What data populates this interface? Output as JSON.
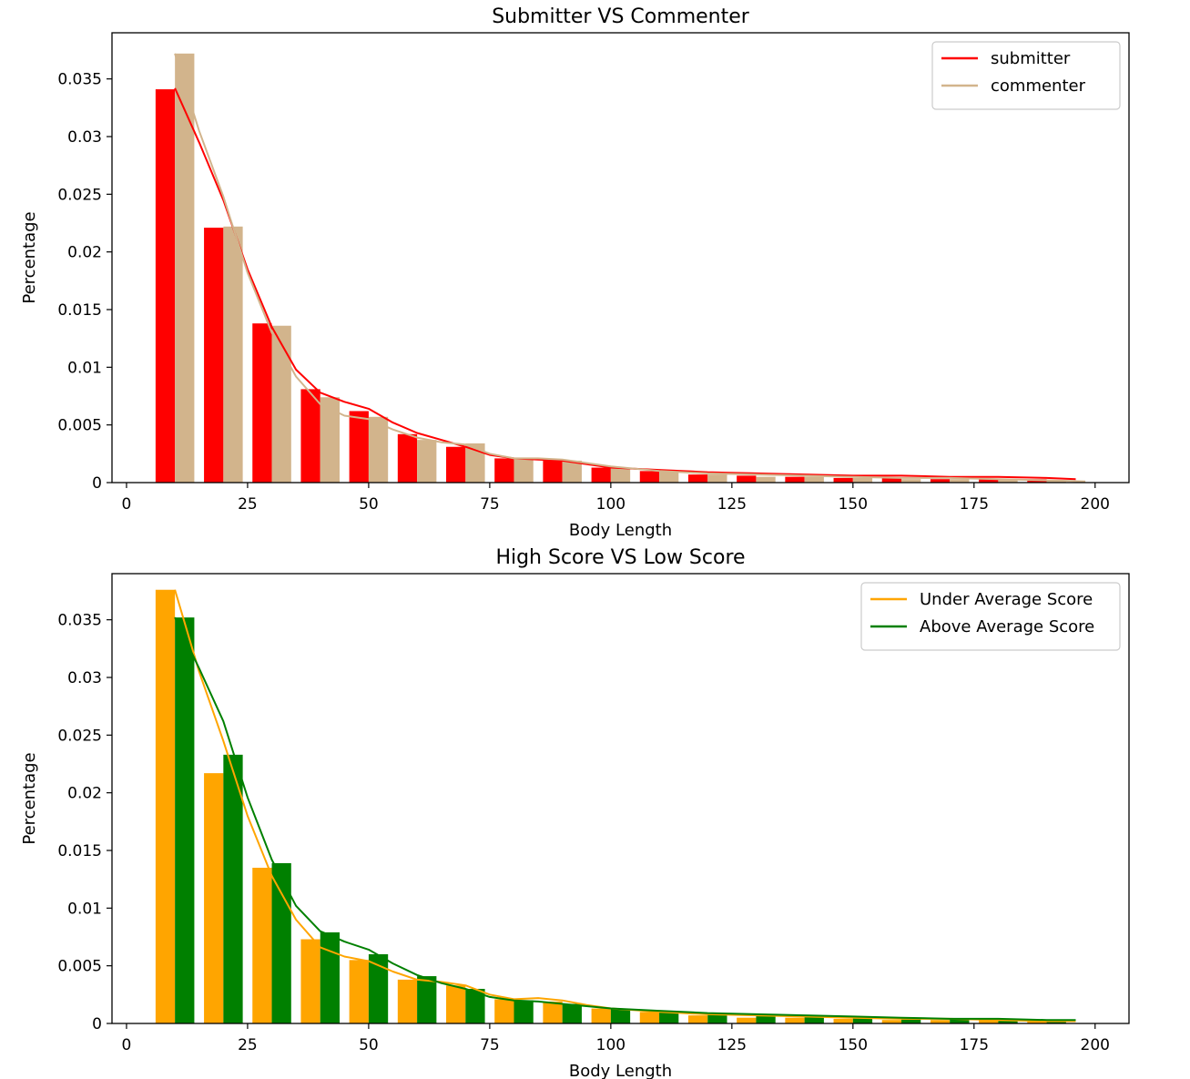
{
  "chart_data": [
    {
      "type": "bar",
      "title": "Submitter VS Commenter",
      "xlabel": "Body Length",
      "ylabel": "Percentage",
      "xlim": [
        -3,
        207
      ],
      "ylim": [
        0,
        0.039
      ],
      "legend_position": "top-right",
      "xticks": [
        0,
        25,
        50,
        75,
        100,
        125,
        150,
        175,
        200
      ],
      "xtick_labels": [
        "0",
        "25",
        "50",
        "75",
        "100",
        "125",
        "150",
        "175",
        "200"
      ],
      "yticks": [
        0,
        0.005,
        0.01,
        0.015,
        0.02,
        0.025,
        0.03,
        0.035
      ],
      "ytick_labels": [
        "0",
        "0.005",
        "0.01",
        "0.015",
        "0.02",
        "0.025",
        "0.03",
        "0.035"
      ],
      "bin_edges": [
        6,
        16,
        26,
        36,
        46,
        56,
        66,
        76,
        86,
        96,
        106,
        116,
        126,
        136,
        146,
        156,
        166,
        176,
        186,
        196
      ],
      "series": [
        {
          "name": "submitter",
          "color": "#ff0000",
          "values": [
            0.0341,
            0.0221,
            0.0138,
            0.0081,
            0.0062,
            0.0042,
            0.0031,
            0.0021,
            0.0019,
            0.0013,
            0.001,
            0.0007,
            0.0006,
            0.0005,
            0.0004,
            0.0004,
            0.0003,
            0.0003,
            0.0003
          ],
          "kde_x": [
            10,
            15,
            20,
            25,
            30,
            35,
            40,
            45,
            50,
            55,
            60,
            65,
            70,
            75,
            80,
            85,
            90,
            95,
            100,
            110,
            120,
            130,
            140,
            150,
            160,
            170,
            180,
            190,
            196
          ],
          "kde_y": [
            0.0342,
            0.0295,
            0.0245,
            0.0185,
            0.0135,
            0.0098,
            0.0078,
            0.007,
            0.0064,
            0.0052,
            0.0043,
            0.0037,
            0.0031,
            0.0024,
            0.0021,
            0.002,
            0.0019,
            0.0016,
            0.0013,
            0.0011,
            0.0009,
            0.0008,
            0.0007,
            0.0006,
            0.0006,
            0.0005,
            0.0005,
            0.0004,
            0.0003
          ]
        },
        {
          "name": "commenter",
          "color": "#d2b48c",
          "values": [
            0.0372,
            0.0222,
            0.0136,
            0.0074,
            0.0057,
            0.0037,
            0.0034,
            0.0021,
            0.0019,
            0.0013,
            0.001,
            0.0007,
            0.0005,
            0.0005,
            0.0004,
            0.0003,
            0.0003,
            0.0003,
            0.0002
          ],
          "kde_x": [
            10,
            15,
            20,
            25,
            30,
            35,
            40,
            45,
            50,
            55,
            60,
            65,
            70,
            75,
            80,
            85,
            90,
            95,
            100,
            110,
            120,
            130,
            140,
            150,
            160,
            170,
            180,
            190,
            198
          ],
          "kde_y": [
            0.0372,
            0.0305,
            0.0248,
            0.0182,
            0.013,
            0.0092,
            0.0068,
            0.0058,
            0.0055,
            0.0046,
            0.0039,
            0.0035,
            0.0033,
            0.0025,
            0.0021,
            0.0021,
            0.002,
            0.0017,
            0.0014,
            0.001,
            0.0008,
            0.0007,
            0.0006,
            0.0005,
            0.0004,
            0.0004,
            0.0003,
            0.0002,
            0.0001
          ]
        }
      ]
    },
    {
      "type": "bar",
      "title": "High Score VS Low Score",
      "xlabel": "Body Length",
      "ylabel": "Percentage",
      "xlim": [
        -3,
        207
      ],
      "ylim": [
        0,
        0.039
      ],
      "legend_position": "top-right",
      "xticks": [
        0,
        25,
        50,
        75,
        100,
        125,
        150,
        175,
        200
      ],
      "xtick_labels": [
        "0",
        "25",
        "50",
        "75",
        "100",
        "125",
        "150",
        "175",
        "200"
      ],
      "yticks": [
        0,
        0.005,
        0.01,
        0.015,
        0.02,
        0.025,
        0.03,
        0.035
      ],
      "ytick_labels": [
        "0",
        "0.005",
        "0.01",
        "0.015",
        "0.02",
        "0.025",
        "0.03",
        "0.035"
      ],
      "bin_edges": [
        6,
        16,
        26,
        36,
        46,
        56,
        66,
        76,
        86,
        96,
        106,
        116,
        126,
        136,
        146,
        156,
        166,
        176,
        186,
        196
      ],
      "series": [
        {
          "name": "Under Average Score",
          "color": "#ffa500",
          "values": [
            0.0376,
            0.0217,
            0.0135,
            0.0073,
            0.0055,
            0.0038,
            0.0033,
            0.0021,
            0.0019,
            0.0013,
            0.001,
            0.0007,
            0.0005,
            0.0005,
            0.0004,
            0.0003,
            0.0003,
            0.0003,
            0.0002
          ],
          "kde_x": [
            10,
            15,
            20,
            25,
            30,
            35,
            40,
            45,
            50,
            55,
            60,
            65,
            70,
            75,
            80,
            85,
            90,
            95,
            100,
            110,
            120,
            130,
            140,
            150,
            160,
            170,
            180,
            190,
            196
          ],
          "kde_y": [
            0.0376,
            0.0305,
            0.0245,
            0.018,
            0.0128,
            0.009,
            0.0066,
            0.0058,
            0.0054,
            0.0045,
            0.0038,
            0.0036,
            0.0033,
            0.0025,
            0.0021,
            0.0022,
            0.002,
            0.0016,
            0.0013,
            0.001,
            0.0008,
            0.0007,
            0.0006,
            0.0005,
            0.0004,
            0.0004,
            0.0003,
            0.0002,
            0.0002
          ]
        },
        {
          "name": "Above Average Score",
          "color": "#008000",
          "values": [
            0.0352,
            0.0233,
            0.0139,
            0.0079,
            0.006,
            0.0041,
            0.003,
            0.002,
            0.0017,
            0.0013,
            0.0011,
            0.0008,
            0.0007,
            0.0006,
            0.0005,
            0.0004,
            0.0004,
            0.0003,
            0.0003
          ],
          "kde_x": [
            10,
            15,
            20,
            25,
            30,
            35,
            40,
            45,
            50,
            55,
            60,
            65,
            70,
            75,
            80,
            85,
            90,
            95,
            100,
            110,
            120,
            130,
            140,
            150,
            160,
            170,
            180,
            190,
            196
          ],
          "kde_y": [
            0.0352,
            0.0308,
            0.0262,
            0.0196,
            0.0142,
            0.0102,
            0.008,
            0.0071,
            0.0064,
            0.0052,
            0.0042,
            0.0035,
            0.003,
            0.0023,
            0.002,
            0.0019,
            0.0017,
            0.0015,
            0.0013,
            0.0011,
            0.0009,
            0.0008,
            0.0007,
            0.0006,
            0.0005,
            0.0004,
            0.0004,
            0.0003,
            0.0003
          ]
        }
      ]
    }
  ]
}
